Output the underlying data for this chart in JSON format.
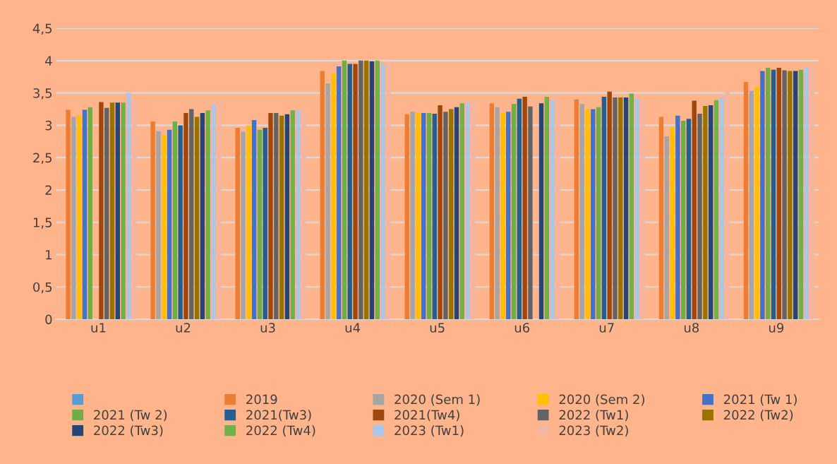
{
  "chart_data": {
    "type": "bar",
    "categories": [
      "u1",
      "u2",
      "u3",
      "u4",
      "u5",
      "u6",
      "u7",
      "u8",
      "u9"
    ],
    "series": [
      {
        "color": "#5b9bd5",
        "values": [
          null,
          null,
          null,
          null,
          null,
          null,
          null,
          null,
          null
        ]
      },
      {
        "name": "2019",
        "color": "#ed7d31",
        "values": [
          3.24,
          3.06,
          2.96,
          3.84,
          3.17,
          3.34,
          3.4,
          3.13,
          3.67
        ]
      },
      {
        "name": "2020 (Sem 1)",
        "color": "#a5a5a5",
        "values": [
          3.13,
          2.91,
          2.9,
          3.65,
          3.21,
          3.28,
          3.33,
          2.83,
          3.53
        ]
      },
      {
        "name": "2020 (Sem 2)",
        "color": "#ffc000",
        "values": [
          3.16,
          2.85,
          3.0,
          3.8,
          3.2,
          3.19,
          3.25,
          2.97,
          3.6
        ]
      },
      {
        "name": "2021 (Tw 1)",
        "color": "#4472c4",
        "values": [
          3.24,
          2.93,
          3.08,
          3.91,
          3.19,
          3.21,
          3.25,
          3.15,
          3.84
        ]
      },
      {
        "name": "2021 (Tw 2)",
        "color": "#70ad47",
        "values": [
          3.28,
          3.06,
          2.93,
          4.0,
          3.19,
          3.33,
          3.28,
          3.07,
          3.89
        ]
      },
      {
        "name": "2021(Tw3)",
        "color": "#255e91",
        "values": [
          null,
          3.0,
          2.96,
          3.95,
          3.18,
          3.41,
          3.44,
          3.1,
          3.86
        ]
      },
      {
        "name": "2021(Tw4)",
        "color": "#9e480e",
        "values": [
          3.36,
          3.19,
          3.19,
          3.95,
          3.31,
          3.44,
          3.52,
          3.38,
          3.89
        ]
      },
      {
        "name": "2022 (Tw1)",
        "color": "#636363",
        "values": [
          3.27,
          3.25,
          3.19,
          4.0,
          3.21,
          3.29,
          3.43,
          3.18,
          3.85
        ]
      },
      {
        "name": "2022 (Tw2)",
        "color": "#997300",
        "values": [
          3.35,
          3.13,
          3.15,
          4.0,
          3.25,
          null,
          3.43,
          3.3,
          3.84
        ]
      },
      {
        "name": "2022 (Tw3)",
        "color": "#264478",
        "values": [
          3.35,
          3.19,
          3.17,
          3.99,
          3.28,
          3.34,
          3.43,
          3.31,
          3.84
        ]
      },
      {
        "name": "2022 (Tw4)",
        "color": "#72b04c",
        "values": [
          3.35,
          3.23,
          3.23,
          4.0,
          3.34,
          3.44,
          3.49,
          3.39,
          3.86
        ]
      },
      {
        "name": "2023 (Tw1)",
        "color": "#adc5e7",
        "values": [
          3.5,
          3.32,
          3.23,
          3.95,
          3.35,
          3.39,
          3.42,
          3.43,
          3.89
        ]
      },
      {
        "name": "2023 (Tw2)",
        "color": "#f4b6a1",
        "values": [
          3.42,
          3.37,
          3.29,
          3.99,
          3.36,
          3.4,
          3.41,
          3.52,
          3.92
        ]
      }
    ],
    "ylim": [
      0,
      4.5
    ],
    "yticks": [
      0,
      {
        "value": 0.5,
        "label": "0,5"
      },
      1,
      {
        "value": 1.5,
        "label": "1,5"
      },
      2,
      {
        "value": 2.5,
        "label": "2,5"
      },
      3,
      {
        "value": 3.5,
        "label": "3,5"
      },
      4,
      {
        "value": 4.5,
        "label": "4,5"
      }
    ],
    "grid": "y",
    "legend": "bottom"
  }
}
